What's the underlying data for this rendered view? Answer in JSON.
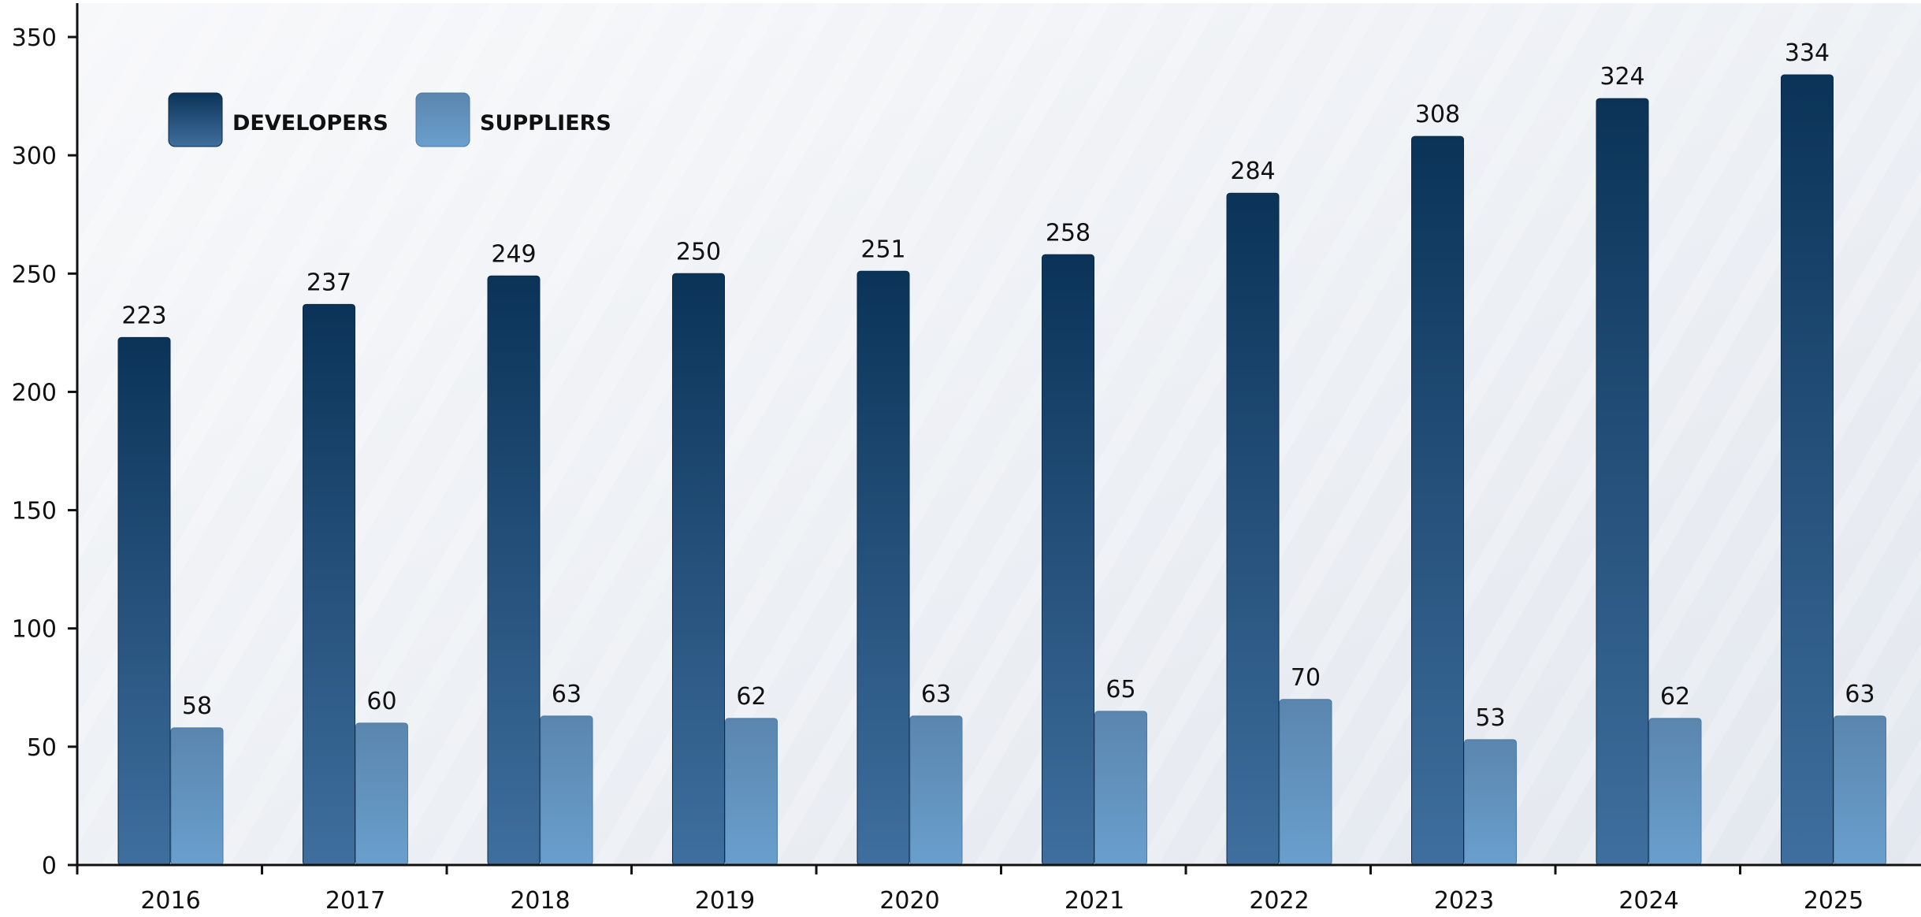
{
  "chart_data": {
    "type": "bar",
    "title": "",
    "xlabel": "",
    "ylabel": "",
    "categories": [
      "2016",
      "2017",
      "2018",
      "2019",
      "2020",
      "2021",
      "2022",
      "2023",
      "2024",
      "2025"
    ],
    "series": [
      {
        "name": "DEVELOPERS",
        "values": [
          223,
          237,
          249,
          250,
          251,
          258,
          284,
          308,
          324,
          334
        ],
        "color_top": "#0b3358",
        "color_bottom": "#3f6f9e"
      },
      {
        "name": "SUPPLIERS",
        "values": [
          58,
          60,
          63,
          62,
          63,
          65,
          70,
          53,
          62,
          63
        ],
        "color_top": "#5a86ae",
        "color_bottom": "#6a9fcd"
      }
    ],
    "ylim": [
      0,
      350
    ],
    "yticks": [
      0,
      50,
      100,
      150,
      200,
      250,
      300,
      350
    ],
    "grid": false,
    "legend_position": "top-left",
    "background_colors": [
      "#f7f8fa",
      "#e3e8ef"
    ]
  }
}
